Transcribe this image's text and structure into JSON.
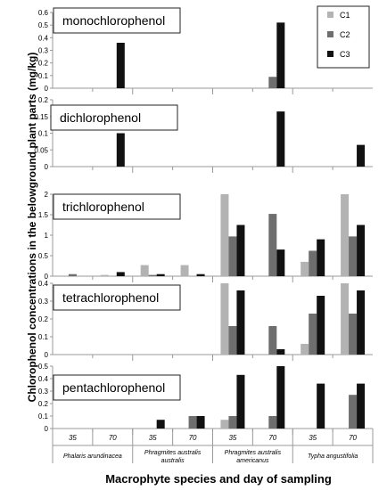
{
  "chart_data": {
    "type": "bar",
    "ylabel": "Chlorophenol concentrations in the belowground plant parts (mg/kg)",
    "xlabel": "Macrophyte species and day of sampling",
    "categories": [
      "35",
      "70",
      "35",
      "70",
      "35",
      "70",
      "35",
      "70"
    ],
    "species": [
      [
        "Phalaris arundinacea"
      ],
      [
        "Phragmites australis",
        "australis"
      ],
      [
        "Phragmites australis",
        "americanus"
      ],
      [
        "Typha angustifolia"
      ]
    ],
    "legend": [
      "C1",
      "C2",
      "C3"
    ],
    "colors": {
      "C1": "#b3b3b3",
      "C2": "#6e6e6e",
      "C3": "#111111"
    },
    "panels": [
      {
        "title": "monochlorophenol",
        "ylim": [
          0,
          0.6
        ],
        "yticks": [
          "0",
          "0.1",
          "0.2",
          "0.3",
          "0.4",
          "0.5",
          "0.6"
        ],
        "series": [
          {
            "name": "C1",
            "values": [
              0,
              0,
              0,
              0,
              0,
              0,
              0,
              0
            ]
          },
          {
            "name": "C2",
            "values": [
              0,
              0,
              0,
              0,
              0,
              0.09,
              0,
              0
            ]
          },
          {
            "name": "C3",
            "values": [
              0,
              0.36,
              0,
              0,
              0,
              0.52,
              0,
              0
            ]
          }
        ]
      },
      {
        "title": "dichlorophenol",
        "ylim": [
          0,
          0.2
        ],
        "yticks": [
          "0",
          "0.05",
          "0.1",
          "0.15",
          "0.2"
        ],
        "series": [
          {
            "name": "C1",
            "values": [
              0,
              0,
              0,
              0,
              0,
              0,
              0,
              0
            ]
          },
          {
            "name": "C2",
            "values": [
              0,
              0,
              0,
              0,
              0,
              0,
              0,
              0
            ]
          },
          {
            "name": "C3",
            "values": [
              0,
              0.1,
              0,
              0,
              0,
              0.165,
              0,
              0.065
            ]
          }
        ]
      },
      {
        "title": "trichlorophenol",
        "ylim": [
          0,
          2
        ],
        "yticks": [
          "0",
          "0.5",
          "1",
          "1.5",
          "2"
        ],
        "series": [
          {
            "name": "C1",
            "values": [
              0,
              0.03,
              0.27,
              0.27,
              2.0,
              0,
              0.35,
              2.0
            ]
          },
          {
            "name": "C2",
            "values": [
              0.05,
              0,
              0.03,
              0,
              0.97,
              1.52,
              0.62,
              0.97
            ]
          },
          {
            "name": "C3",
            "values": [
              0,
              0.1,
              0.05,
              0.05,
              1.25,
              0.65,
              0.9,
              1.25
            ]
          }
        ]
      },
      {
        "title": "tetrachlorophenol",
        "ylim": [
          0,
          0.4
        ],
        "yticks": [
          "0",
          "0.1",
          "0.2",
          "0.3",
          "0.4"
        ],
        "series": [
          {
            "name": "C1",
            "values": [
              0,
              0,
              0,
              0,
              0.43,
              0,
              0.06,
              0.43
            ]
          },
          {
            "name": "C2",
            "values": [
              0,
              0,
              0,
              0,
              0.16,
              0.16,
              0.23,
              0.23
            ]
          },
          {
            "name": "C3",
            "values": [
              0,
              0,
              0,
              0,
              0.36,
              0.03,
              0.33,
              0.36
            ]
          }
        ]
      },
      {
        "title": "pentachlorophenol",
        "ylim": [
          0,
          0.5
        ],
        "yticks": [
          "0",
          "0.1",
          "0.2",
          "0.3",
          "0.4",
          "0.5"
        ],
        "series": [
          {
            "name": "C1",
            "values": [
              0,
              0,
              0,
              0,
              0.07,
              0,
              0,
              0
            ]
          },
          {
            "name": "C2",
            "values": [
              0,
              0,
              0,
              0.1,
              0.1,
              0.1,
              0,
              0.27
            ]
          },
          {
            "name": "C3",
            "values": [
              0,
              0,
              0.07,
              0.1,
              0.43,
              0.5,
              0.36,
              0.36
            ]
          }
        ]
      }
    ]
  }
}
